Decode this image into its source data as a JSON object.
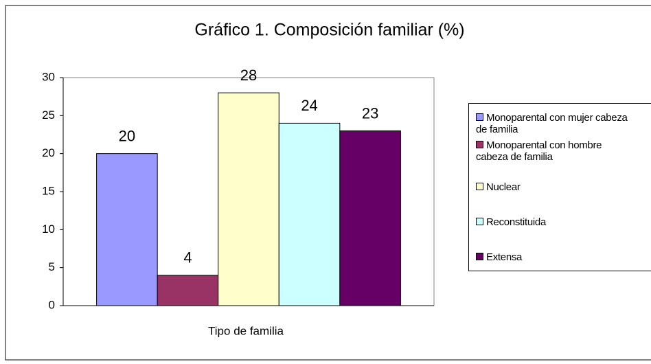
{
  "chart_data": {
    "type": "bar",
    "title": "Gráfico 1. Composición familiar (%)",
    "categories": [
      "Tipo de familia"
    ],
    "series": [
      {
        "name": "Monoparental con mujer cabeza de familia",
        "color": "#9999ff",
        "values": [
          20
        ]
      },
      {
        "name": "Monoparental con hombre cabeza de familia",
        "color": "#993366",
        "values": [
          4
        ]
      },
      {
        "name": "Nuclear",
        "color": "#ffffcc",
        "values": [
          28
        ]
      },
      {
        "name": "Reconstituida",
        "color": "#ccffff",
        "values": [
          24
        ]
      },
      {
        "name": "Extensa",
        "color": "#660066",
        "values": [
          23
        ]
      }
    ],
    "ylim": [
      0,
      30
    ],
    "yticks": [
      0,
      5,
      10,
      15,
      20,
      25,
      30
    ],
    "grid": false,
    "legend": "right"
  }
}
